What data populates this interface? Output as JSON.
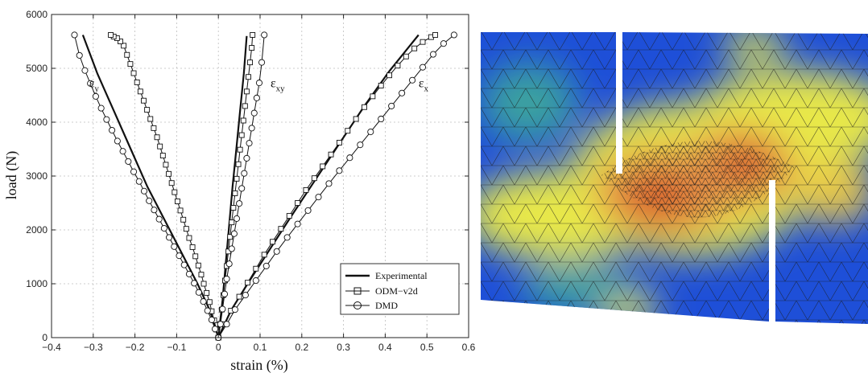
{
  "chart_data": {
    "type": "line",
    "title": "",
    "xlabel": "strain (%)",
    "ylabel": "load (N)",
    "xlim": [
      -0.4,
      0.6
    ],
    "ylim": [
      0,
      6000
    ],
    "xticks": [
      -0.4,
      -0.3,
      -0.2,
      -0.1,
      0,
      0.1,
      0.2,
      0.3,
      0.4,
      0.5,
      0.6
    ],
    "xtick_labels": [
      "−0.4",
      "−0.3",
      "−0.2",
      "−0.1",
      "0",
      "0.1",
      "0.2",
      "0.3",
      "0.4",
      "0.5",
      "0.6"
    ],
    "yticks": [
      0,
      1000,
      2000,
      3000,
      4000,
      5000,
      6000
    ],
    "ytick_labels": [
      "0",
      "1000",
      "2000",
      "3000",
      "4000",
      "5000",
      "6000"
    ],
    "grid": true,
    "legend_position": "bottom-right",
    "annotations": [
      {
        "text": "ε",
        "sub": "y",
        "x": -0.31,
        "y": 4650
      },
      {
        "text": "ε",
        "sub": "xy",
        "x": 0.125,
        "y": 4650
      },
      {
        "text": "ε",
        "sub": "x",
        "x": 0.48,
        "y": 4650
      }
    ],
    "series": [
      {
        "name": "Experimental",
        "marker": "none",
        "curves": [
          {
            "x": [
              0,
              -0.02,
              -0.05,
              -0.09,
              -0.13,
              -0.17,
              -0.21,
              -0.25,
              -0.29,
              -0.325
            ],
            "y": [
              0,
              500,
              1000,
              1600,
              2200,
              2800,
              3500,
              4200,
              4900,
              5620
            ]
          },
          {
            "x": [
              0,
              0.01,
              0.018,
              0.026,
              0.034,
              0.043,
              0.052,
              0.061,
              0.068
            ],
            "y": [
              0,
              700,
              1400,
              2100,
              2800,
              3500,
              4200,
              4900,
              5600
            ]
          },
          {
            "x": [
              0,
              0.03,
              0.07,
              0.12,
              0.17,
              0.23,
              0.29,
              0.35,
              0.41,
              0.48
            ],
            "y": [
              0,
              500,
              1000,
              1600,
              2200,
              2900,
              3600,
              4300,
              4950,
              5620
            ]
          }
        ]
      },
      {
        "name": "ODM−v2d",
        "marker": "square",
        "curves": [
          {
            "x": [
              0,
              -0.005,
              -0.01,
              -0.016,
              -0.021,
              -0.028,
              -0.035,
              -0.041,
              -0.048,
              -0.055,
              -0.062,
              -0.07,
              -0.077,
              -0.084,
              -0.091,
              -0.098,
              -0.105,
              -0.112,
              -0.119,
              -0.126,
              -0.133,
              -0.14,
              -0.147,
              -0.155,
              -0.163,
              -0.171,
              -0.179,
              -0.187,
              -0.195,
              -0.203,
              -0.211,
              -0.219,
              -0.227,
              -0.235,
              -0.243,
              -0.251,
              -0.258
            ],
            "y": [
              0,
              150,
              320,
              490,
              660,
              830,
              1000,
              1170,
              1340,
              1510,
              1680,
              1850,
              2020,
              2190,
              2360,
              2530,
              2700,
              2870,
              3040,
              3210,
              3380,
              3550,
              3720,
              3890,
              4060,
              4230,
              4400,
              4570,
              4740,
              4910,
              5080,
              5250,
              5420,
              5500,
              5560,
              5590,
              5620
            ]
          },
          {
            "x": [
              0,
              0.004,
              0.008,
              0.012,
              0.016,
              0.02,
              0.024,
              0.028,
              0.032,
              0.036,
              0.04,
              0.044,
              0.048,
              0.052,
              0.056,
              0.06,
              0.064,
              0.068,
              0.072,
              0.076,
              0.08,
              0.082
            ],
            "y": [
              0,
              250,
              520,
              790,
              1060,
              1330,
              1600,
              1870,
              2140,
              2410,
              2680,
              2950,
              3220,
              3490,
              3760,
              4030,
              4300,
              4570,
              4840,
              5110,
              5380,
              5620
            ]
          },
          {
            "x": [
              0,
              0.015,
              0.03,
              0.05,
              0.07,
              0.09,
              0.11,
              0.13,
              0.15,
              0.17,
              0.19,
              0.21,
              0.23,
              0.25,
              0.27,
              0.29,
              0.31,
              0.33,
              0.35,
              0.37,
              0.39,
              0.41,
              0.43,
              0.45,
              0.47,
              0.49,
              0.51,
              0.52
            ],
            "y": [
              0,
              250,
              500,
              760,
              1020,
              1280,
              1540,
              1780,
              2020,
              2260,
              2500,
              2740,
              2960,
              3180,
              3400,
              3620,
              3840,
              4060,
              4280,
              4480,
              4680,
              4870,
              5050,
              5220,
              5370,
              5490,
              5580,
              5620
            ]
          }
        ]
      },
      {
        "name": "DMD",
        "marker": "circle",
        "curves": [
          {
            "x": [
              0,
              -0.008,
              -0.016,
              -0.026,
              -0.036,
              -0.047,
              -0.058,
              -0.07,
              -0.082,
              -0.094,
              -0.106,
              -0.118,
              -0.13,
              -0.142,
              -0.154,
              -0.166,
              -0.178,
              -0.19,
              -0.203,
              -0.216,
              -0.229,
              -0.242,
              -0.255,
              -0.268,
              -0.281,
              -0.294,
              -0.307,
              -0.32,
              -0.333,
              -0.345
            ],
            "y": [
              0,
              160,
              330,
              500,
              670,
              840,
              1010,
              1180,
              1350,
              1520,
              1690,
              1860,
              2030,
              2200,
              2370,
              2540,
              2720,
              2900,
              3080,
              3270,
              3460,
              3650,
              3850,
              4050,
              4260,
              4480,
              4720,
              4960,
              5240,
              5620
            ]
          },
          {
            "x": [
              0,
              0.005,
              0.01,
              0.015,
              0.02,
              0.026,
              0.032,
              0.038,
              0.044,
              0.05,
              0.056,
              0.062,
              0.068,
              0.074,
              0.08,
              0.086,
              0.092,
              0.098,
              0.104,
              0.11
            ],
            "y": [
              0,
              250,
              530,
              810,
              1090,
              1370,
              1650,
              1930,
              2210,
              2490,
              2770,
              3050,
              3330,
              3610,
              3890,
              4170,
              4450,
              4730,
              5110,
              5620
            ]
          },
          {
            "x": [
              0,
              0.02,
              0.04,
              0.065,
              0.09,
              0.115,
              0.14,
              0.165,
              0.19,
              0.215,
              0.24,
              0.265,
              0.29,
              0.315,
              0.34,
              0.365,
              0.39,
              0.415,
              0.44,
              0.465,
              0.49,
              0.515,
              0.54,
              0.565
            ],
            "y": [
              0,
              250,
              520,
              790,
              1060,
              1330,
              1600,
              1860,
              2110,
              2360,
              2610,
              2860,
              3100,
              3340,
              3580,
              3820,
              4060,
              4300,
              4540,
              4780,
              5020,
              5260,
              5460,
              5620
            ]
          }
        ]
      }
    ]
  },
  "colors": {
    "axis": "#222222",
    "grid": "#bdbdbd",
    "series_line": "#111111",
    "mesh_low": "#1e4fd8",
    "mesh_mid": "#e8e84a",
    "mesh_high": "#d9622b"
  }
}
